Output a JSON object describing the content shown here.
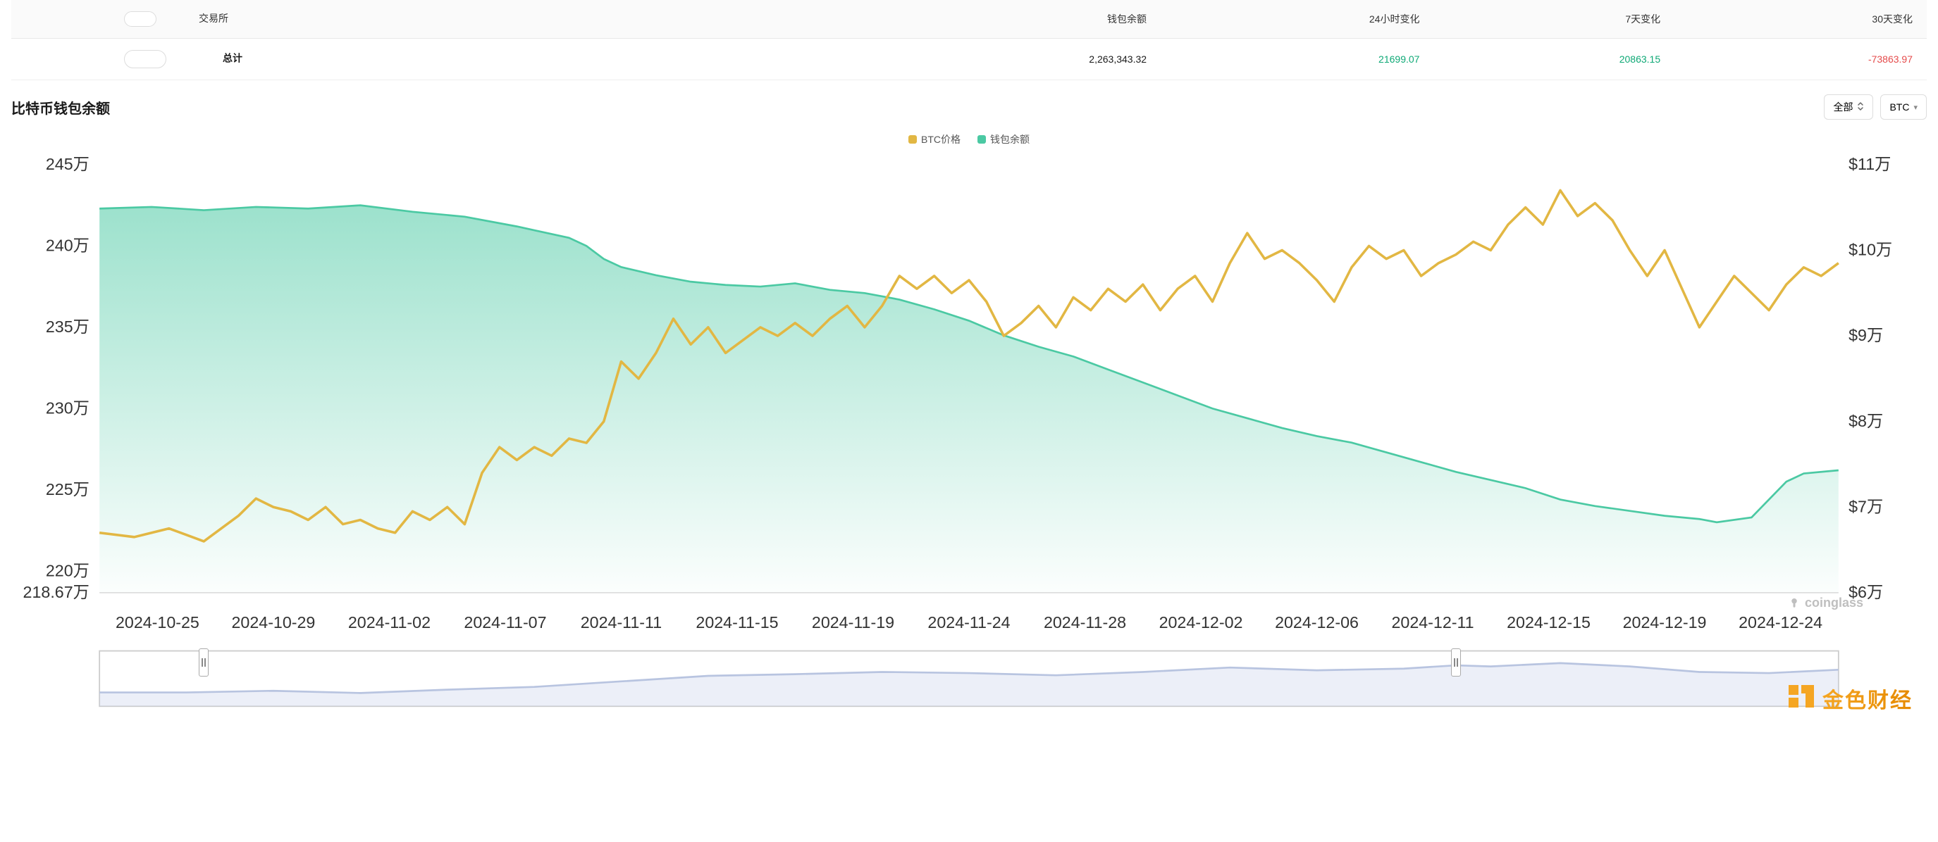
{
  "table": {
    "headers": [
      "交易所",
      "钱包余额",
      "24小时变化",
      "7天变化",
      "30天变化"
    ],
    "row": {
      "label": "总计",
      "balance": "2,263,343.32",
      "change24h": "21699.07",
      "change7d": "20863.15",
      "change30d": "-73863.97"
    }
  },
  "section": {
    "title": "比特币钱包余额",
    "range_label": "全部",
    "unit_label": "BTC"
  },
  "legend": {
    "price": "BTC价格",
    "balance": "钱包余额"
  },
  "chart": {
    "type": "dual-axis-line-area",
    "background_color": "#ffffff",
    "grid_color": "#f0f0f0",
    "text_color": "#333333",
    "tick_fontsize": 13,
    "y_left": {
      "min": 218.67,
      "max": 245,
      "ticks": [
        218.67,
        220,
        225,
        230,
        235,
        240,
        245
      ],
      "suffix": "万"
    },
    "y_right": {
      "min": 6,
      "max": 11,
      "ticks": [
        6,
        7,
        8,
        9,
        10,
        11
      ],
      "prefix": "$",
      "suffix": "万"
    },
    "x_labels": [
      "2024-10-25",
      "2024-10-29",
      "2024-11-02",
      "2024-11-07",
      "2024-11-11",
      "2024-11-15",
      "2024-11-19",
      "2024-11-24",
      "2024-11-28",
      "2024-12-02",
      "2024-12-06",
      "2024-12-11",
      "2024-12-15",
      "2024-12-19",
      "2024-12-24"
    ],
    "series_balance": {
      "color": "#4bc9a3",
      "fill_top": "rgba(75,201,163,0.55)",
      "fill_bottom": "rgba(75,201,163,0.02)",
      "line_width": 1.5,
      "data": [
        [
          0,
          242.3
        ],
        [
          3,
          242.4
        ],
        [
          6,
          242.2
        ],
        [
          9,
          242.4
        ],
        [
          12,
          242.3
        ],
        [
          15,
          242.5
        ],
        [
          18,
          242.1
        ],
        [
          21,
          241.8
        ],
        [
          24,
          241.2
        ],
        [
          27,
          240.5
        ],
        [
          28,
          240.0
        ],
        [
          29,
          239.2
        ],
        [
          30,
          238.7
        ],
        [
          32,
          238.2
        ],
        [
          34,
          237.8
        ],
        [
          36,
          237.6
        ],
        [
          38,
          237.5
        ],
        [
          40,
          237.7
        ],
        [
          42,
          237.3
        ],
        [
          44,
          237.1
        ],
        [
          46,
          236.7
        ],
        [
          48,
          236.1
        ],
        [
          50,
          235.4
        ],
        [
          52,
          234.5
        ],
        [
          54,
          233.8
        ],
        [
          56,
          233.2
        ],
        [
          58,
          232.4
        ],
        [
          60,
          231.6
        ],
        [
          62,
          230.8
        ],
        [
          64,
          230.0
        ],
        [
          66,
          229.4
        ],
        [
          68,
          228.8
        ],
        [
          70,
          228.3
        ],
        [
          72,
          227.9
        ],
        [
          74,
          227.3
        ],
        [
          76,
          226.7
        ],
        [
          78,
          226.1
        ],
        [
          80,
          225.6
        ],
        [
          82,
          225.1
        ],
        [
          84,
          224.4
        ],
        [
          86,
          224.0
        ],
        [
          88,
          223.7
        ],
        [
          90,
          223.4
        ],
        [
          92,
          223.2
        ],
        [
          93,
          223.0
        ],
        [
          95,
          223.3
        ],
        [
          97,
          225.5
        ],
        [
          98,
          226.0
        ],
        [
          100,
          226.2
        ]
      ]
    },
    "series_price": {
      "color": "#e2b743",
      "line_width": 2,
      "data": [
        [
          0,
          6.7
        ],
        [
          2,
          6.65
        ],
        [
          4,
          6.75
        ],
        [
          6,
          6.6
        ],
        [
          8,
          6.9
        ],
        [
          9,
          7.1
        ],
        [
          10,
          7.0
        ],
        [
          11,
          6.95
        ],
        [
          12,
          6.85
        ],
        [
          13,
          7.0
        ],
        [
          14,
          6.8
        ],
        [
          15,
          6.85
        ],
        [
          16,
          6.75
        ],
        [
          17,
          6.7
        ],
        [
          18,
          6.95
        ],
        [
          19,
          6.85
        ],
        [
          20,
          7.0
        ],
        [
          21,
          6.8
        ],
        [
          22,
          7.4
        ],
        [
          23,
          7.7
        ],
        [
          24,
          7.55
        ],
        [
          25,
          7.7
        ],
        [
          26,
          7.6
        ],
        [
          27,
          7.8
        ],
        [
          28,
          7.75
        ],
        [
          29,
          8.0
        ],
        [
          30,
          8.7
        ],
        [
          31,
          8.5
        ],
        [
          32,
          8.8
        ],
        [
          33,
          9.2
        ],
        [
          34,
          8.9
        ],
        [
          35,
          9.1
        ],
        [
          36,
          8.8
        ],
        [
          37,
          8.95
        ],
        [
          38,
          9.1
        ],
        [
          39,
          9.0
        ],
        [
          40,
          9.15
        ],
        [
          41,
          9.0
        ],
        [
          42,
          9.2
        ],
        [
          43,
          9.35
        ],
        [
          44,
          9.1
        ],
        [
          45,
          9.35
        ],
        [
          46,
          9.7
        ],
        [
          47,
          9.55
        ],
        [
          48,
          9.7
        ],
        [
          49,
          9.5
        ],
        [
          50,
          9.65
        ],
        [
          51,
          9.4
        ],
        [
          52,
          9.0
        ],
        [
          53,
          9.15
        ],
        [
          54,
          9.35
        ],
        [
          55,
          9.1
        ],
        [
          56,
          9.45
        ],
        [
          57,
          9.3
        ],
        [
          58,
          9.55
        ],
        [
          59,
          9.4
        ],
        [
          60,
          9.6
        ],
        [
          61,
          9.3
        ],
        [
          62,
          9.55
        ],
        [
          63,
          9.7
        ],
        [
          64,
          9.4
        ],
        [
          65,
          9.85
        ],
        [
          66,
          10.2
        ],
        [
          67,
          9.9
        ],
        [
          68,
          10.0
        ],
        [
          69,
          9.85
        ],
        [
          70,
          9.65
        ],
        [
          71,
          9.4
        ],
        [
          72,
          9.8
        ],
        [
          73,
          10.05
        ],
        [
          74,
          9.9
        ],
        [
          75,
          10.0
        ],
        [
          76,
          9.7
        ],
        [
          77,
          9.85
        ],
        [
          78,
          9.95
        ],
        [
          79,
          10.1
        ],
        [
          80,
          10.0
        ],
        [
          81,
          10.3
        ],
        [
          82,
          10.5
        ],
        [
          83,
          10.3
        ],
        [
          84,
          10.7
        ],
        [
          85,
          10.4
        ],
        [
          86,
          10.55
        ],
        [
          87,
          10.35
        ],
        [
          88,
          10.0
        ],
        [
          89,
          9.7
        ],
        [
          90,
          10.0
        ],
        [
          91,
          9.55
        ],
        [
          92,
          9.1
        ],
        [
          93,
          9.4
        ],
        [
          94,
          9.7
        ],
        [
          95,
          9.5
        ],
        [
          96,
          9.3
        ],
        [
          97,
          9.6
        ],
        [
          98,
          9.8
        ],
        [
          99,
          9.7
        ],
        [
          100,
          9.85
        ]
      ]
    }
  },
  "minimap": {
    "stroke": "#b8c4e0",
    "fill": "rgba(200,210,235,0.35)",
    "border": "#cccccc",
    "data": [
      [
        0,
        0.25
      ],
      [
        5,
        0.25
      ],
      [
        10,
        0.28
      ],
      [
        15,
        0.24
      ],
      [
        20,
        0.3
      ],
      [
        25,
        0.35
      ],
      [
        30,
        0.45
      ],
      [
        35,
        0.55
      ],
      [
        40,
        0.58
      ],
      [
        45,
        0.62
      ],
      [
        50,
        0.6
      ],
      [
        55,
        0.56
      ],
      [
        60,
        0.62
      ],
      [
        65,
        0.7
      ],
      [
        70,
        0.65
      ],
      [
        75,
        0.68
      ],
      [
        78,
        0.74
      ],
      [
        80,
        0.72
      ],
      [
        84,
        0.78
      ],
      [
        88,
        0.72
      ],
      [
        92,
        0.62
      ],
      [
        96,
        0.6
      ],
      [
        100,
        0.66
      ]
    ],
    "handle_left_pct": 6,
    "handle_right_pct": 78
  },
  "watermark": "coinglass",
  "brand": "金色财经"
}
